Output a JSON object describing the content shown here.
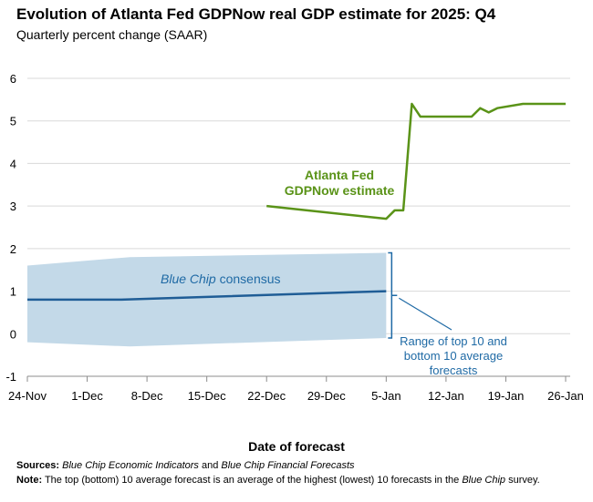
{
  "colors": {
    "gdpnow": "#5a9318",
    "consensus_line": "#1f5d96",
    "band": "#c3d9e8",
    "annotation": "#1f6aa5",
    "grid": "#d9d9d9",
    "axis": "#8c8c8c",
    "text": "#000000"
  },
  "footer": {
    "sources_label": "Sources:",
    "sources_italic_1": "Blue Chip Economic Indicators",
    "sources_and": " and ",
    "sources_italic_2": "Blue Chip Financial Forecasts",
    "note_label": "Note:",
    "note_text_1": " The top (bottom) 10 average forecast is an average of the highest (lowest) 10 forecasts in the ",
    "note_italic": "Blue Chip",
    "note_text_2": " survey."
  },
  "chart_data": {
    "type": "line",
    "title": "Evolution of Atlanta Fed GDPNow real GDP estimate for 2025: Q4",
    "subtitle": "Quarterly percent change (SAAR)",
    "xlabel": "Date of forecast",
    "ylabel": "",
    "ylim": [
      -1,
      6
    ],
    "xlim": [
      "24-Nov",
      "26-Jan"
    ],
    "yticks": [
      "-1",
      "0",
      "1",
      "2",
      "3",
      "4",
      "5",
      "6"
    ],
    "xticks": [
      "24-Nov",
      "1-Dec",
      "8-Dec",
      "15-Dec",
      "22-Dec",
      "29-Dec",
      "5-Jan",
      "12-Jan",
      "19-Jan",
      "26-Jan"
    ],
    "grid": "horizontal",
    "series": [
      {
        "name": "Atlanta Fed GDPNow estimate",
        "x": [
          "22-Dec",
          "5-Jan",
          "6-Jan",
          "7-Jan",
          "8-Jan",
          "9-Jan",
          "15-Jan",
          "16-Jan",
          "17-Jan",
          "18-Jan",
          "21-Jan",
          "26-Jan"
        ],
        "y": [
          3.0,
          2.7,
          2.9,
          2.9,
          5.4,
          5.1,
          5.1,
          5.3,
          5.2,
          5.3,
          5.4,
          5.4
        ]
      },
      {
        "name": "Blue Chip consensus",
        "x": [
          "24-Nov",
          "5-Dec",
          "5-Jan"
        ],
        "y": [
          0.8,
          0.8,
          1.0
        ]
      }
    ],
    "band": {
      "name": "Range of top 10 and bottom 10 average forecasts",
      "x": [
        "24-Nov",
        "6-Dec",
        "5-Jan"
      ],
      "upper": [
        1.6,
        1.8,
        1.9
      ],
      "lower": [
        -0.2,
        -0.3,
        -0.1
      ]
    },
    "annotations": {
      "gdpnow_line1": "Atlanta Fed",
      "gdpnow_line2": "GDPNow estimate",
      "consensus_italic": "Blue Chip",
      "consensus_rest": " consensus",
      "range_line1": "Range of top 10 and",
      "range_line2": "bottom 10 average",
      "range_line3": "forecasts"
    }
  }
}
